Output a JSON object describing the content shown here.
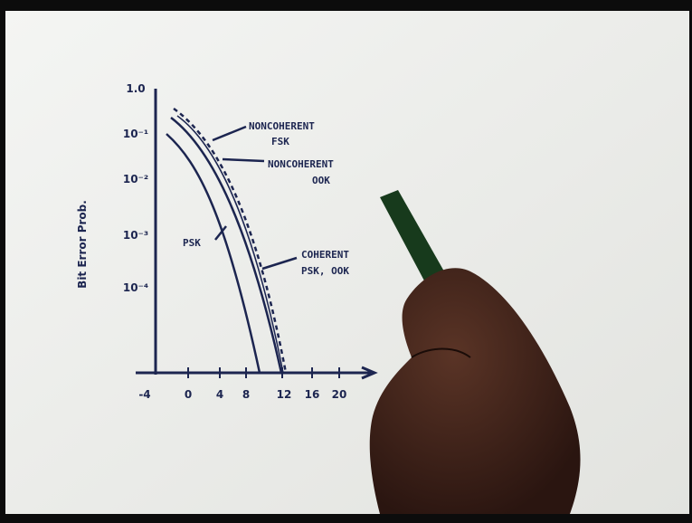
{
  "sketch": {
    "y_axis_label": "Bit Error Prob.",
    "y_tick_labels": [
      "1.0",
      "10⁻¹",
      "10⁻²",
      "10⁻³",
      "10⁻⁴"
    ],
    "x_tick_labels": [
      "-4",
      "0",
      "4",
      "8",
      "12",
      "16",
      "20"
    ],
    "annotations": {
      "noncoherent_fsk": [
        "NONCOHERENT",
        "FSK"
      ],
      "noncoherent_ook": [
        "NONCOHERENT",
        "OOK"
      ],
      "coherent": [
        "COHERENT",
        "PSK, OOK"
      ],
      "psk": "PSK"
    }
  }
}
